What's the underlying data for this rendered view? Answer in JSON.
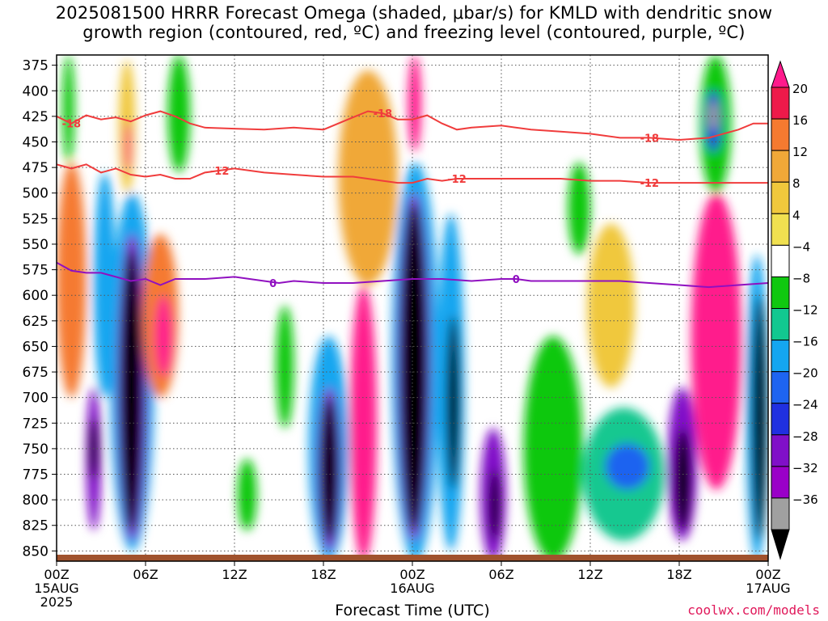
{
  "title_lines": [
    "2025081500 HRRR Forecast Omega (shaded, μbar/s) for KMLD with dendritic snow",
    "growth region (contoured, red, ºC) and freezing level (contoured, purple, ºC)"
  ],
  "watermark": "coolwx.com/models",
  "chart_data": {
    "type": "heatmap",
    "xlabel": "Forecast Time (UTC)",
    "ylabel": "",
    "x_range_hours": [
      0,
      48
    ],
    "y_range_hpa": [
      860,
      365
    ],
    "y_ticks": [
      375,
      400,
      425,
      450,
      475,
      500,
      525,
      550,
      575,
      600,
      625,
      650,
      675,
      700,
      725,
      750,
      775,
      800,
      825,
      850
    ],
    "x_ticks": [
      {
        "hour": 0,
        "lines": [
          "00Z",
          "15AUG",
          "2025"
        ]
      },
      {
        "hour": 6,
        "lines": [
          "06Z"
        ]
      },
      {
        "hour": 12,
        "lines": [
          "12Z"
        ]
      },
      {
        "hour": 18,
        "lines": [
          "18Z"
        ]
      },
      {
        "hour": 24,
        "lines": [
          "00Z",
          "16AUG"
        ]
      },
      {
        "hour": 30,
        "lines": [
          "06Z"
        ]
      },
      {
        "hour": 36,
        "lines": [
          "12Z"
        ]
      },
      {
        "hour": 42,
        "lines": [
          "18Z"
        ]
      },
      {
        "hour": 48,
        "lines": [
          "00Z",
          "17AUG"
        ]
      }
    ],
    "grid": true,
    "colorbar": {
      "labels": [
        "20",
        "16",
        "12",
        "8",
        "4",
        "−4",
        "−8",
        "−12",
        "−16",
        "−20",
        "−24",
        "−28",
        "−32",
        "−36"
      ],
      "colors": [
        "#ee1a4a",
        "#f57a30",
        "#f0a838",
        "#f0c83c",
        "#f0e050",
        "#ffffff",
        "#10c810",
        "#12c890",
        "#14a6f0",
        "#1e64f0",
        "#2030e0",
        "#8010c8",
        "#9a00c8",
        "#a0a0a0"
      ],
      "top_color": "#ff1a8c",
      "bottom_color": "#000000"
    },
    "cells": [
      {
        "x": [
          0.2,
          1.6
        ],
        "y": [
          480,
          640
        ],
        "color": "#ff1a8c"
      },
      {
        "x": [
          0.0,
          2.0
        ],
        "y": [
          470,
          700
        ],
        "color": "#f57a30"
      },
      {
        "x": [
          2.0,
          3.0
        ],
        "y": [
          690,
          830
        ],
        "color": "#8010c8"
      },
      {
        "x": [
          2.2,
          2.8
        ],
        "y": [
          720,
          780
        ],
        "color": "#000000"
      },
      {
        "x": [
          2.5,
          4.0
        ],
        "y": [
          480,
          700
        ],
        "color": "#14a6f0"
      },
      {
        "x": [
          3.6,
          6.6
        ],
        "y": [
          500,
          850
        ],
        "color": "#14a6f0"
      },
      {
        "x": [
          4.1,
          6.1
        ],
        "y": [
          540,
          840
        ],
        "color": "#8010c8"
      },
      {
        "x": [
          4.3,
          5.8
        ],
        "y": [
          555,
          830
        ],
        "color": "#000000"
      },
      {
        "x": [
          4.2,
          5.3
        ],
        "y": [
          370,
          500
        ],
        "color": "#f0c83c"
      },
      {
        "x": [
          4.6,
          5.0
        ],
        "y": [
          430,
          480
        ],
        "color": "#ff1a8c"
      },
      {
        "x": [
          5.8,
          8.2
        ],
        "y": [
          540,
          700
        ],
        "color": "#f57a30"
      },
      {
        "x": [
          6.6,
          7.8
        ],
        "y": [
          600,
          680
        ],
        "color": "#ff1a8c"
      },
      {
        "x": [
          0.4,
          1.2
        ],
        "y": [
          365,
          470
        ],
        "color": "#10c810"
      },
      {
        "x": [
          7.5,
          9.0
        ],
        "y": [
          365,
          480
        ],
        "color": "#10c810"
      },
      {
        "x": [
          12.2,
          13.5
        ],
        "y": [
          760,
          830
        ],
        "color": "#10c810"
      },
      {
        "x": [
          14.8,
          16.0
        ],
        "y": [
          610,
          730
        ],
        "color": "#10c810"
      },
      {
        "x": [
          17.0,
          19.7
        ],
        "y": [
          640,
          860
        ],
        "color": "#14a6f0"
      },
      {
        "x": [
          17.6,
          19.2
        ],
        "y": [
          690,
          850
        ],
        "color": "#8010c8"
      },
      {
        "x": [
          17.8,
          19.0
        ],
        "y": [
          700,
          840
        ],
        "color": "#000000"
      },
      {
        "x": [
          19.8,
          21.6
        ],
        "y": [
          590,
          860
        ],
        "color": "#ff1a8c"
      },
      {
        "x": [
          19.0,
          23.0
        ],
        "y": [
          380,
          590
        ],
        "color": "#f0a838"
      },
      {
        "x": [
          22.6,
          25.8
        ],
        "y": [
          470,
          860
        ],
        "color": "#14a6f0"
      },
      {
        "x": [
          23.0,
          25.2
        ],
        "y": [
          500,
          840
        ],
        "color": "#8010c8"
      },
      {
        "x": [
          23.2,
          25.0
        ],
        "y": [
          510,
          830
        ],
        "color": "#000000"
      },
      {
        "x": [
          23.7,
          24.6
        ],
        "y": [
          365,
          460
        ],
        "color": "#ff1a8c"
      },
      {
        "x": [
          25.7,
          27.5
        ],
        "y": [
          520,
          850
        ],
        "color": "#14a6f0"
      },
      {
        "x": [
          26.3,
          27.2
        ],
        "y": [
          620,
          790
        ],
        "color": "#000000"
      },
      {
        "x": [
          28.6,
          30.3
        ],
        "y": [
          730,
          860
        ],
        "color": "#8010c8"
      },
      {
        "x": [
          29.2,
          29.9
        ],
        "y": [
          770,
          840
        ],
        "color": "#000000"
      },
      {
        "x": [
          31.5,
          35.5
        ],
        "y": [
          640,
          860
        ],
        "color": "#10c810"
      },
      {
        "x": [
          35.5,
          41.0
        ],
        "y": [
          710,
          840
        ],
        "color": "#12c890"
      },
      {
        "x": [
          37.0,
          40.0
        ],
        "y": [
          745,
          790
        ],
        "color": "#1e64f0"
      },
      {
        "x": [
          34.5,
          36.0
        ],
        "y": [
          470,
          560
        ],
        "color": "#10c810"
      },
      {
        "x": [
          35.8,
          39.0
        ],
        "y": [
          530,
          690
        ],
        "color": "#f0c83c"
      },
      {
        "x": [
          41.2,
          43.2
        ],
        "y": [
          690,
          840
        ],
        "color": "#8010c8"
      },
      {
        "x": [
          41.7,
          42.8
        ],
        "y": [
          730,
          830
        ],
        "color": "#000000"
      },
      {
        "x": [
          42.8,
          46.2
        ],
        "y": [
          500,
          790
        ],
        "color": "#ff1a8c"
      },
      {
        "x": [
          43.4,
          45.5
        ],
        "y": [
          365,
          500
        ],
        "color": "#10c810"
      },
      {
        "x": [
          43.8,
          44.8
        ],
        "y": [
          400,
          460
        ],
        "color": "#2030e0"
      },
      {
        "x": [
          44.0,
          44.6
        ],
        "y": [
          410,
          440
        ],
        "color": "#a0a0a0"
      },
      {
        "x": [
          46.5,
          48.0
        ],
        "y": [
          560,
          860
        ],
        "color": "#14a6f0"
      },
      {
        "x": [
          46.9,
          47.9
        ],
        "y": [
          600,
          840
        ],
        "color": "#000000"
      }
    ],
    "contours": [
      {
        "name": "-18",
        "color": "#f03c3c",
        "label_color": "#f03c3c",
        "labels_at": [
          1,
          22,
          40
        ],
        "points": [
          [
            0,
            425
          ],
          [
            1,
            432
          ],
          [
            2,
            424
          ],
          [
            3,
            428
          ],
          [
            4,
            426
          ],
          [
            5,
            430
          ],
          [
            6,
            424
          ],
          [
            7,
            420
          ],
          [
            8,
            425
          ],
          [
            9,
            432
          ],
          [
            10,
            436
          ],
          [
            12,
            437
          ],
          [
            14,
            438
          ],
          [
            16,
            436
          ],
          [
            18,
            438
          ],
          [
            20,
            426
          ],
          [
            21,
            420
          ],
          [
            22,
            422
          ],
          [
            23,
            428
          ],
          [
            24,
            428
          ],
          [
            25,
            424
          ],
          [
            26,
            432
          ],
          [
            27,
            438
          ],
          [
            28,
            436
          ],
          [
            30,
            434
          ],
          [
            32,
            438
          ],
          [
            34,
            440
          ],
          [
            36,
            442
          ],
          [
            38,
            446
          ],
          [
            40,
            446
          ],
          [
            42,
            448
          ],
          [
            44,
            446
          ],
          [
            46,
            438
          ],
          [
            47,
            432
          ],
          [
            48,
            432
          ]
        ]
      },
      {
        "name": "-12",
        "color": "#f03c3c",
        "label_color": "#f03c3c",
        "labels_at": [
          11,
          27,
          40
        ],
        "points": [
          [
            0,
            472
          ],
          [
            1,
            476
          ],
          [
            2,
            472
          ],
          [
            3,
            480
          ],
          [
            4,
            476
          ],
          [
            5,
            482
          ],
          [
            6,
            484
          ],
          [
            7,
            482
          ],
          [
            8,
            486
          ],
          [
            9,
            486
          ],
          [
            10,
            480
          ],
          [
            11,
            478
          ],
          [
            12,
            476
          ],
          [
            14,
            480
          ],
          [
            16,
            482
          ],
          [
            18,
            484
          ],
          [
            20,
            484
          ],
          [
            22,
            488
          ],
          [
            23,
            490
          ],
          [
            24,
            490
          ],
          [
            25,
            486
          ],
          [
            26,
            488
          ],
          [
            27,
            486
          ],
          [
            28,
            486
          ],
          [
            30,
            486
          ],
          [
            32,
            486
          ],
          [
            34,
            486
          ],
          [
            36,
            488
          ],
          [
            38,
            488
          ],
          [
            40,
            490
          ],
          [
            42,
            490
          ],
          [
            44,
            490
          ],
          [
            46,
            490
          ],
          [
            48,
            490
          ]
        ]
      },
      {
        "name": "0",
        "color": "#9010c0",
        "label_color": "#9010c0",
        "labels_at": [
          14.6,
          31
        ],
        "points": [
          [
            0,
            568
          ],
          [
            1,
            576
          ],
          [
            2,
            578
          ],
          [
            3,
            578
          ],
          [
            4,
            582
          ],
          [
            5,
            586
          ],
          [
            6,
            584
          ],
          [
            7,
            590
          ],
          [
            8,
            584
          ],
          [
            9,
            584
          ],
          [
            10,
            584
          ],
          [
            12,
            582
          ],
          [
            14,
            586
          ],
          [
            15,
            588
          ],
          [
            16,
            586
          ],
          [
            18,
            588
          ],
          [
            20,
            588
          ],
          [
            22,
            586
          ],
          [
            24,
            584
          ],
          [
            26,
            584
          ],
          [
            28,
            586
          ],
          [
            30,
            584
          ],
          [
            31,
            584
          ],
          [
            32,
            586
          ],
          [
            34,
            586
          ],
          [
            36,
            586
          ],
          [
            38,
            586
          ],
          [
            40,
            588
          ],
          [
            42,
            590
          ],
          [
            44,
            592
          ],
          [
            46,
            590
          ],
          [
            48,
            588
          ]
        ]
      }
    ]
  }
}
